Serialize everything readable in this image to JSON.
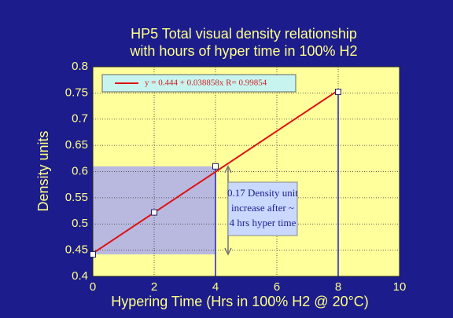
{
  "chart_data": {
    "type": "scatter",
    "title": [
      "HP5   Total visual density relationship",
      "with hours of hyper time  in 100% H2"
    ],
    "x_label": "Hypering Time (Hrs in 100% H2 @ 20°C)",
    "y_label": "Density units",
    "xlim": [
      0,
      10
    ],
    "xticks": [
      0,
      2,
      4,
      6,
      8,
      10
    ],
    "ylim": [
      0.4,
      0.8
    ],
    "yticks": [
      0.4,
      0.45,
      0.5,
      0.55,
      0.6,
      0.65,
      0.7,
      0.75,
      0.8
    ],
    "grid": true,
    "series": [
      {
        "name": "y = 0.444 + 0.038858x R= 0.99854",
        "color": "#dd1111",
        "kind": "line",
        "x": [
          0,
          8
        ],
        "values": [
          0.444,
          0.755
        ]
      },
      {
        "color": "#ffffff",
        "kind": "points",
        "x": [
          0,
          2,
          4,
          8
        ],
        "values": [
          0.442,
          0.522,
          0.61,
          0.752
        ]
      }
    ],
    "annotation": [
      "0.17 Density unit",
      "increase after ~",
      "4 hrs hyper time"
    ]
  }
}
